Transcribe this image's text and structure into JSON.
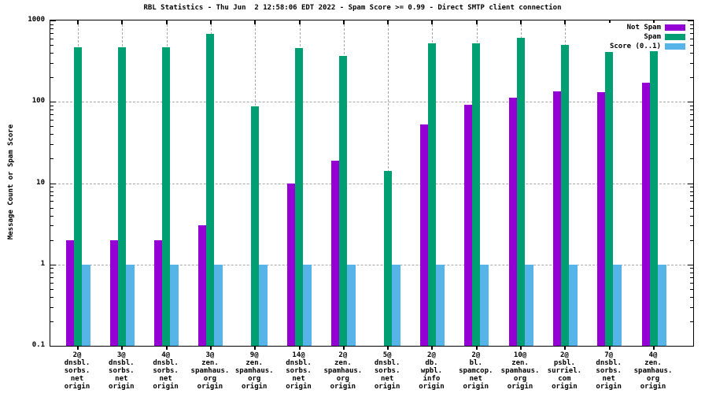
{
  "title": "RBL Statistics - Thu Jun  2 12:58:06 EDT 2022 - Spam Score >= 0.99 - Direct SMTP client connection",
  "y_axis": {
    "label": "Message Count or Spam Score",
    "ticks": [
      {
        "label": "1000",
        "value": 1000
      },
      {
        "label": "100",
        "value": 100
      },
      {
        "label": "10",
        "value": 10
      },
      {
        "label": "1",
        "value": 1
      },
      {
        "label": "0.1",
        "value": 0.1
      }
    ]
  },
  "legend": {
    "position": "top-right-inside",
    "entries": [
      {
        "label": "Not Spam",
        "color": "#9400d3"
      },
      {
        "label": "Spam",
        "color": "#009e73"
      },
      {
        "label": "Score (0..1)",
        "color": "#56b4e9"
      }
    ]
  },
  "colors": {
    "not_spam": "#9400d3",
    "spam": "#009e73",
    "score": "#56b4e9",
    "grid": "#a8a8a8",
    "border": "#000000"
  },
  "chart_data": {
    "type": "bar",
    "y_scale": "log",
    "ylim": [
      0.1,
      1000
    ],
    "grid": "on",
    "title": "RBL Statistics - Thu Jun  2 12:58:06 EDT 2022 - Spam Score >= 0.99 - Direct SMTP client connection",
    "xlabel": "",
    "ylabel": "Message Count or Spam Score",
    "categories": [
      "2@\ndnsbl.\nsorbs.\nnet\norigin",
      "3@\ndnsbl.\nsorbs.\nnet\norigin",
      "4@\ndnsbl.\nsorbs.\nnet\norigin",
      "3@\nzen.\nspamhaus.\norg\norigin",
      "9@\nzen.\nspamhaus.\norg\norigin",
      "14@\ndnsbl.\nsorbs.\nnet\norigin",
      "2@\nzen.\nspamhaus.\norg\norigin",
      "5@\ndnsbl.\nsorbs.\nnet\norigin",
      "2@\ndb.\nwpbl.\ninfo\norigin",
      "2@\nbl.\nspamcop.\nnet\norigin",
      "10@\nzen.\nspamhaus.\norg\norigin",
      "2@\npsbl.\nsurriel.\ncom\norigin",
      "7@\ndnsbl.\nsorbs.\nnet\norigin",
      "4@\nzen.\nspamhaus.\norg\norigin"
    ],
    "series": [
      {
        "name": "Not Spam",
        "color": "#9400d3",
        "values": [
          2,
          2,
          2,
          3,
          null,
          10,
          19,
          null,
          53,
          93,
          113,
          135,
          130,
          170
        ]
      },
      {
        "name": "Spam",
        "color": "#009e73",
        "values": [
          470,
          470,
          470,
          690,
          88,
          460,
          370,
          14,
          520,
          520,
          610,
          500,
          410,
          490
        ]
      },
      {
        "name": "Score (0..1)",
        "color": "#56b4e9",
        "values": [
          0.99,
          0.99,
          0.99,
          0.99,
          0.99,
          0.99,
          0.99,
          0.99,
          0.99,
          0.99,
          0.99,
          0.99,
          0.99,
          0.99
        ]
      }
    ]
  }
}
